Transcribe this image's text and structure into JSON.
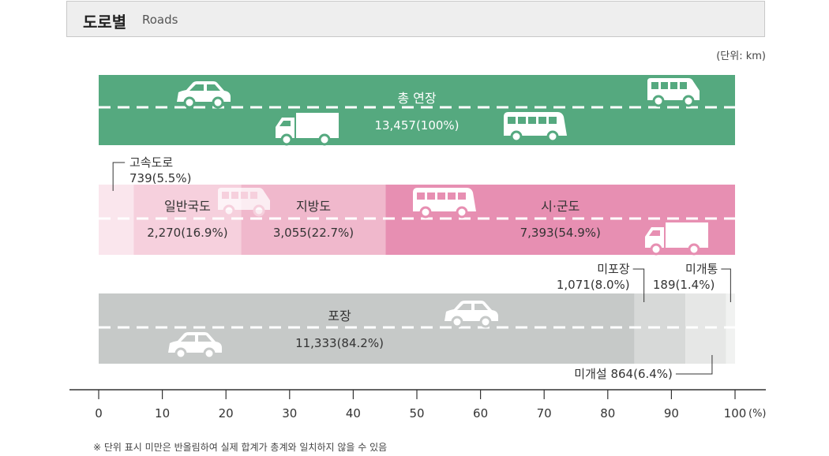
{
  "header": {
    "title_ko": "도로별",
    "title_en": "Roads"
  },
  "unit_label": "(단위: km)",
  "footnote": "※ 단위 표시 미만은 반올림하여 실제 합계가 총계와 일치하지 않을 수 있음",
  "colors": {
    "total": "#55a97f",
    "expressway": "#fae6ed",
    "national": "#f6d0dd",
    "local": "#f0b8cc",
    "city": "#e78fb2",
    "paved": "#c6c9c8",
    "unpaved": "#d7d9d8",
    "unpaved_light": "#e6e7e6",
    "unopened": "#f1f2f1"
  },
  "chart_data": {
    "type": "bar",
    "xlim": [
      0,
      100
    ],
    "x_ticks": [
      "0",
      "10",
      "20",
      "30",
      "40",
      "50",
      "60",
      "70",
      "80",
      "90",
      "100"
    ],
    "x_unit": "(%)",
    "bars": [
      {
        "row": "total",
        "segments": [
          {
            "label": "총 연장",
            "value_text": "13,457(100%)",
            "km": 13457,
            "percent": 100.0
          }
        ]
      },
      {
        "row": "admin",
        "segments": [
          {
            "label": "고속도로",
            "value_text": "739(5.5%)",
            "km": 739,
            "percent": 5.5
          },
          {
            "label": "일반국도",
            "value_text": "2,270(16.9%)",
            "km": 2270,
            "percent": 16.9
          },
          {
            "label": "지방도",
            "value_text": "3,055(22.7%)",
            "km": 3055,
            "percent": 22.7
          },
          {
            "label": "시·군도",
            "value_text": "7,393(54.9%)",
            "km": 7393,
            "percent": 54.9
          }
        ]
      },
      {
        "row": "paving",
        "segments": [
          {
            "label": "포장",
            "value_text": "11,333(84.2%)",
            "km": 11333,
            "percent": 84.2
          },
          {
            "label": "미포장",
            "value_text": "1,071(8.0%)",
            "km": 1071,
            "percent": 8.0
          },
          {
            "label": "미개설",
            "value_text": "864(6.4%)",
            "km": 864,
            "percent": 6.4
          },
          {
            "label": "미개통",
            "value_text": "189(1.4%)",
            "km": 189,
            "percent": 1.4
          }
        ]
      }
    ]
  }
}
